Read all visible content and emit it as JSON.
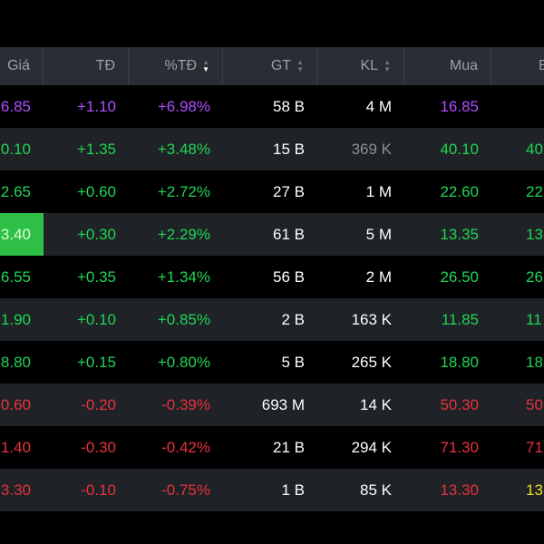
{
  "colors": {
    "up": "#1fd655",
    "down": "#e8323c",
    "ceiling": "#b04cff",
    "ref": "#f0e020",
    "neutral": "#ffffff",
    "muted": "#9aa0a8"
  },
  "header": {
    "gia": "Giá",
    "td": "TĐ",
    "pct_td": "%TĐ",
    "gt": "GT",
    "kl": "KL",
    "mua": "Mua",
    "b": "B"
  },
  "rows": [
    {
      "gia": "6.85",
      "td": "+1.10",
      "pct": "+6.98%",
      "gt": "58 B",
      "kl": "4 M",
      "mua": "16.85",
      "b": "",
      "c_gia": "#b04cff",
      "c_td": "#b04cff",
      "c_kl": "#ffffff",
      "c_mua": "#b04cff",
      "c_b": "#b04cff"
    },
    {
      "gia": "0.10",
      "td": "+1.35",
      "pct": "+3.48%",
      "gt": "15 B",
      "kl": "369 K",
      "mua": "40.10",
      "b": "40",
      "c_gia": "#1fd655",
      "c_td": "#1fd655",
      "c_kl": "#8a8f96",
      "c_mua": "#1fd655",
      "c_b": "#1fd655"
    },
    {
      "gia": "2.65",
      "td": "+0.60",
      "pct": "+2.72%",
      "gt": "27 B",
      "kl": "1 M",
      "mua": "22.60",
      "b": "22",
      "c_gia": "#1fd655",
      "c_td": "#1fd655",
      "c_kl": "#ffffff",
      "c_mua": "#1fd655",
      "c_b": "#1fd655"
    },
    {
      "gia": "3.40",
      "td": "+0.30",
      "pct": "+2.29%",
      "gt": "61 B",
      "kl": "5 M",
      "mua": "13.35",
      "b": "13",
      "c_gia": "#1fd655",
      "c_td": "#1fd655",
      "c_kl": "#ffffff",
      "c_mua": "#1fd655",
      "c_b": "#1fd655",
      "highlight": true
    },
    {
      "gia": "6.55",
      "td": "+0.35",
      "pct": "+1.34%",
      "gt": "56 B",
      "kl": "2 M",
      "mua": "26.50",
      "b": "26",
      "c_gia": "#1fd655",
      "c_td": "#1fd655",
      "c_kl": "#ffffff",
      "c_mua": "#1fd655",
      "c_b": "#1fd655"
    },
    {
      "gia": "1.90",
      "td": "+0.10",
      "pct": "+0.85%",
      "gt": "2 B",
      "kl": "163 K",
      "mua": "11.85",
      "b": "11",
      "c_gia": "#1fd655",
      "c_td": "#1fd655",
      "c_kl": "#ffffff",
      "c_mua": "#1fd655",
      "c_b": "#1fd655"
    },
    {
      "gia": "8.80",
      "td": "+0.15",
      "pct": "+0.80%",
      "gt": "5 B",
      "kl": "265 K",
      "mua": "18.80",
      "b": "18",
      "c_gia": "#1fd655",
      "c_td": "#1fd655",
      "c_kl": "#ffffff",
      "c_mua": "#1fd655",
      "c_b": "#1fd655"
    },
    {
      "gia": "0.60",
      "td": "-0.20",
      "pct": "-0.39%",
      "gt": "693 M",
      "kl": "14 K",
      "mua": "50.30",
      "b": "50",
      "c_gia": "#e8323c",
      "c_td": "#e8323c",
      "c_kl": "#ffffff",
      "c_mua": "#e8323c",
      "c_b": "#e8323c"
    },
    {
      "gia": "1.40",
      "td": "-0.30",
      "pct": "-0.42%",
      "gt": "21 B",
      "kl": "294 K",
      "mua": "71.30",
      "b": "71",
      "c_gia": "#e8323c",
      "c_td": "#e8323c",
      "c_kl": "#ffffff",
      "c_mua": "#e8323c",
      "c_b": "#e8323c"
    },
    {
      "gia": "3.30",
      "td": "-0.10",
      "pct": "-0.75%",
      "gt": "1 B",
      "kl": "85 K",
      "mua": "13.30",
      "b": "13",
      "c_gia": "#e8323c",
      "c_td": "#e8323c",
      "c_kl": "#ffffff",
      "c_mua": "#e8323c",
      "c_b": "#f0e020"
    }
  ]
}
